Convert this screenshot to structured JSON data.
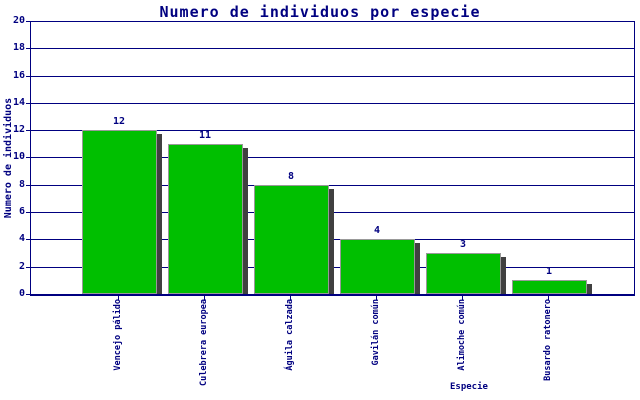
{
  "chart_data": {
    "type": "bar",
    "title": "Numero de individuos por especie",
    "xlabel": "Especie",
    "ylabel": "Numero de individuos",
    "categories": [
      "Vencejo pálido",
      "Culebrera europea",
      "Águila calzada",
      "Gavilán común",
      "Alimoche común",
      "Busardo ratonero"
    ],
    "values": [
      12,
      11,
      8,
      4,
      3,
      1
    ],
    "ylim": [
      0,
      20
    ],
    "ytick_step": 2,
    "grid": "horizontal",
    "legend": "none",
    "colors": {
      "bar_fill": "#00BF00",
      "bar_border": "#999999",
      "bar_shadow": "#404040",
      "axis_and_text": "#000080",
      "background": "#FFFFFF"
    }
  }
}
